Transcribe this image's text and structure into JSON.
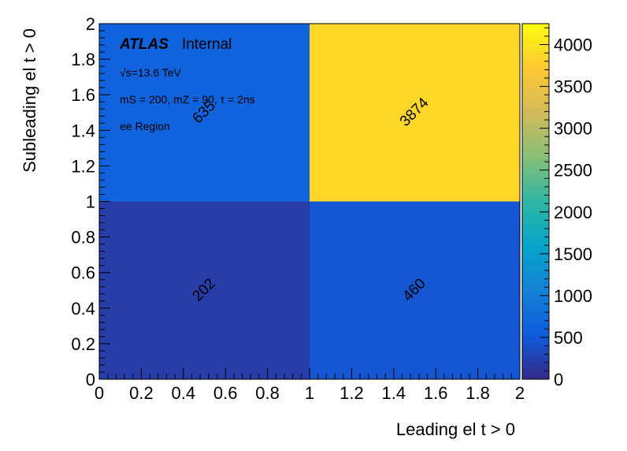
{
  "chart_data": {
    "type": "heatmap",
    "title": "",
    "xlabel": "Leading el t > 0",
    "ylabel": "Subleading el t > 0",
    "xlim": [
      0,
      2
    ],
    "ylim": [
      0,
      2
    ],
    "x_bins": [
      [
        0,
        1
      ],
      [
        1,
        2
      ]
    ],
    "y_bins": [
      [
        0,
        1
      ],
      [
        1,
        2
      ]
    ],
    "cells": [
      {
        "x": 0,
        "y": 0,
        "value": 202
      },
      {
        "x": 1,
        "y": 0,
        "value": 460
      },
      {
        "x": 0,
        "y": 1,
        "value": 635
      },
      {
        "x": 1,
        "y": 1,
        "value": 3874
      }
    ],
    "x_ticks": [
      "0",
      "0.2",
      "0.4",
      "0.6",
      "0.8",
      "1",
      "1.2",
      "1.4",
      "1.6",
      "1.8",
      "2"
    ],
    "y_ticks": [
      "0",
      "0.2",
      "0.4",
      "0.6",
      "0.8",
      "1",
      "1.2",
      "1.4",
      "1.6",
      "1.8",
      "2"
    ],
    "colorbar": {
      "min": 0,
      "max": 4250,
      "ticks": [
        "0",
        "500",
        "1000",
        "1500",
        "2000",
        "2500",
        "3000",
        "3500",
        "4000"
      ],
      "tick_values": [
        0,
        500,
        1000,
        1500,
        2000,
        2500,
        3000,
        3500,
        4000
      ],
      "palette": [
        "#352a87",
        "#0f5cdd",
        "#1481d6",
        "#06a4ca",
        "#2eb7a4",
        "#87bf77",
        "#d1bb59",
        "#fec832",
        "#f9fb0e"
      ]
    },
    "annotations": {
      "experiment": "ATLAS",
      "status": "Internal",
      "energy": "√s=13.6 TeV",
      "params": "mS = 200, mZ = 90, τ = 2ns",
      "region": "ee Region"
    }
  }
}
